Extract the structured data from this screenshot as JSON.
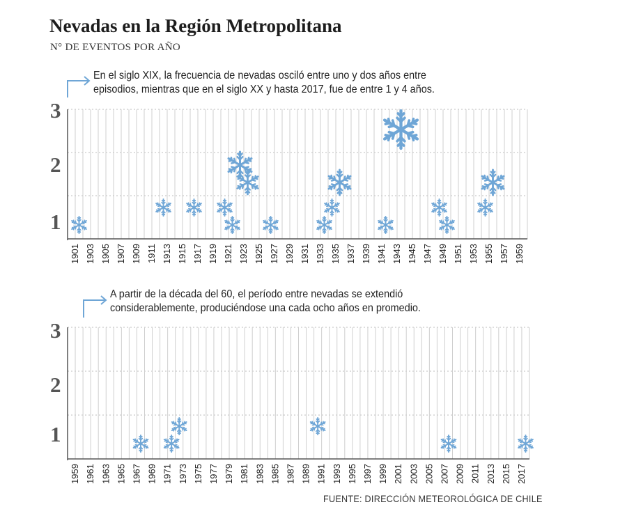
{
  "title": "Nevadas en la Región Metropolitana",
  "subtitle": "N° DE EVENTOS POR AÑO",
  "note_top": [
    "En el siglo XIX, la frecuencia de nevadas osciló entre uno y dos años entre",
    "episodios, mientras que en el siglo XX y hasta 2017, fue de entre 1 y 4 años."
  ],
  "note_bottom": [
    "A partir de la década del 60, el período entre nevadas se extendió",
    "considerablemente, produciéndose una cada ocho años en promedio."
  ],
  "source": "FUENTE: DIRECCIÓN METEOROLÓGICA DE CHILE",
  "colors": {
    "snowflake": "#6fa6d6",
    "axis": "#555555",
    "grid": "#bdbdbd"
  },
  "chart_data": [
    {
      "type": "scatter",
      "marker": "snowflake-icon",
      "y_tick_labels": [
        "1",
        "2",
        "3"
      ],
      "ylim": [
        1,
        3
      ],
      "x_tick_labels": [
        "1901",
        "1903",
        "1905",
        "1907",
        "1909",
        "1911",
        "1913",
        "1915",
        "1917",
        "1919",
        "1921",
        "1923",
        "1925",
        "1927",
        "1929",
        "1931",
        "1933",
        "1935",
        "1937",
        "1939",
        "1941",
        "1943",
        "1945",
        "1947",
        "1949",
        "1951",
        "1953",
        "1955",
        "1957",
        "1959"
      ],
      "xlim": [
        1900,
        1960
      ],
      "points": [
        {
          "year": 1901,
          "events": 1
        },
        {
          "year": 1912,
          "events": 1
        },
        {
          "year": 1916,
          "events": 1
        },
        {
          "year": 1920,
          "events": 1
        },
        {
          "year": 1921,
          "events": 1
        },
        {
          "year": 1922,
          "events": 2
        },
        {
          "year": 1923,
          "events": 1
        },
        {
          "year": 1926,
          "events": 1
        },
        {
          "year": 1933,
          "events": 1
        },
        {
          "year": 1934,
          "events": 1
        },
        {
          "year": 1935,
          "events": 2
        },
        {
          "year": 1941,
          "events": 1
        },
        {
          "year": 1943,
          "events": 3
        },
        {
          "year": 1948,
          "events": 1
        },
        {
          "year": 1949,
          "events": 1
        },
        {
          "year": 1954,
          "events": 1
        },
        {
          "year": 1955,
          "events": 2
        }
      ],
      "grid": true
    },
    {
      "type": "scatter",
      "marker": "snowflake-icon",
      "y_tick_labels": [
        "1",
        "2",
        "3"
      ],
      "ylim": [
        1,
        3
      ],
      "x_tick_labels": [
        "1959",
        "1961",
        "1963",
        "1965",
        "1967",
        "1969",
        "1971",
        "1973",
        "1975",
        "1977",
        "1979",
        "1981",
        "1983",
        "1985",
        "1987",
        "1989",
        "1991",
        "1993",
        "1995",
        "1997",
        "1999",
        "2001",
        "2003",
        "2005",
        "2007",
        "2009",
        "2011",
        "2013",
        "2015",
        "2017"
      ],
      "xlim": [
        1958,
        2018
      ],
      "points": [
        {
          "year": 1967,
          "events": 1
        },
        {
          "year": 1971,
          "events": 1
        },
        {
          "year": 1972,
          "events": 1
        },
        {
          "year": 1990,
          "events": 1
        },
        {
          "year": 2007,
          "events": 1
        },
        {
          "year": 2017,
          "events": 1
        }
      ],
      "grid": true
    }
  ]
}
